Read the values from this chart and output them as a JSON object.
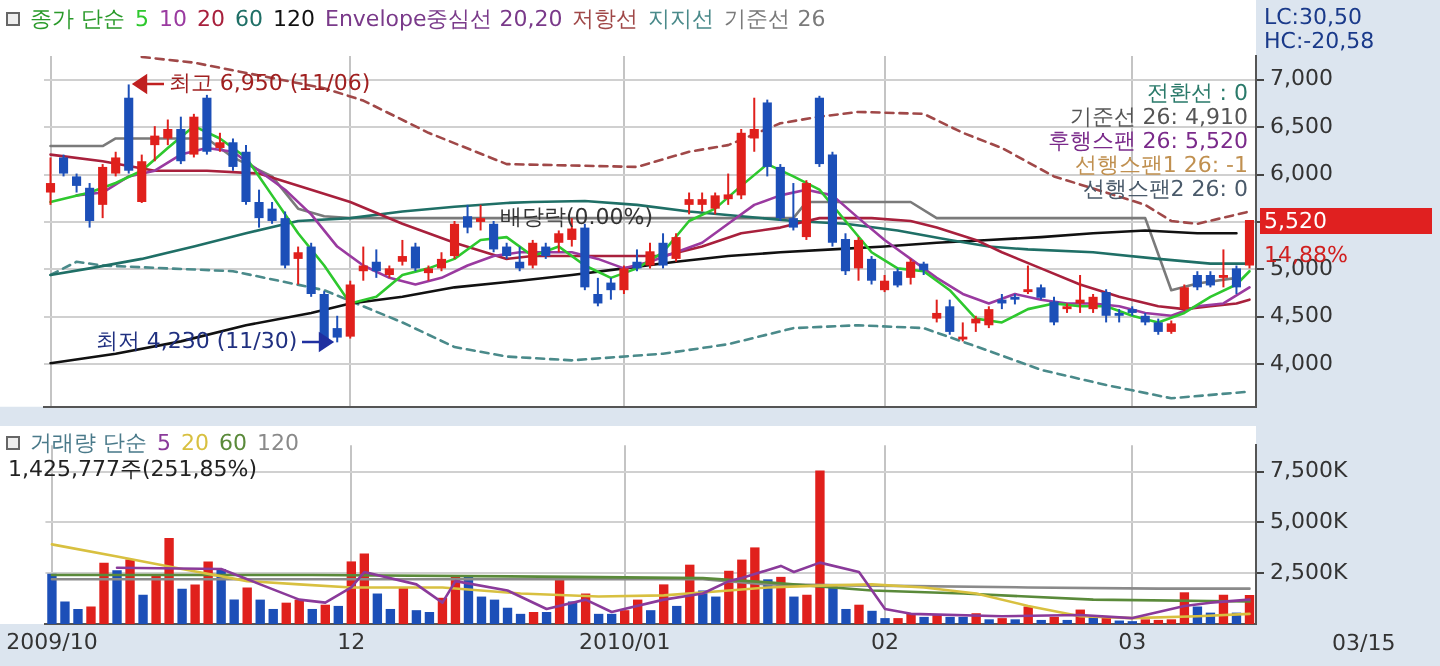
{
  "chart_data": [
    {
      "type": "candlestick",
      "legend_title": "종가 단순",
      "legend": "top left",
      "grid": true,
      "marker": "none",
      "tick_labels": "y",
      "categories": [
        "2009/10",
        null,
        null,
        null,
        null,
        null,
        null,
        null,
        null,
        null,
        null,
        null,
        null,
        null,
        null,
        null,
        null,
        null,
        null,
        null,
        null,
        null,
        null,
        "12",
        null,
        null,
        null,
        null,
        null,
        null,
        null,
        null,
        null,
        null,
        null,
        null,
        null,
        null,
        null,
        null,
        null,
        null,
        null,
        null,
        "2010/01",
        null,
        null,
        null,
        null,
        null,
        null,
        null,
        null,
        null,
        null,
        null,
        null,
        null,
        null,
        null,
        null,
        null,
        null,
        null,
        "02",
        null,
        null,
        null,
        null,
        null,
        null,
        null,
        null,
        null,
        null,
        null,
        null,
        null,
        null,
        null,
        null,
        null,
        null,
        "03",
        null,
        null,
        null,
        null,
        null,
        null,
        null,
        null,
        null
      ],
      "ohlc": [
        [
          5810,
          6180,
          5680,
          5910
        ],
        [
          6180,
          6210,
          5980,
          6010
        ],
        [
          5980,
          6010,
          5810,
          5880
        ],
        [
          5860,
          5910,
          5440,
          5510
        ],
        [
          5680,
          6110,
          5540,
          6080
        ],
        [
          6010,
          6240,
          5980,
          6180
        ],
        [
          6810,
          6950,
          6010,
          6040
        ],
        [
          5710,
          6210,
          5700,
          6140
        ],
        [
          6310,
          6510,
          6140,
          6410
        ],
        [
          6380,
          6580,
          6310,
          6480
        ],
        [
          6480,
          6610,
          6110,
          6140
        ],
        [
          6210,
          6640,
          6180,
          6610
        ],
        [
          6810,
          6840,
          6210,
          6240
        ],
        [
          6280,
          6440,
          6240,
          6340
        ],
        [
          6340,
          6380,
          6040,
          6080
        ],
        [
          6240,
          6310,
          5680,
          5710
        ],
        [
          5710,
          5840,
          5440,
          5540
        ],
        [
          5640,
          5710,
          5480,
          5510
        ],
        [
          5540,
          5610,
          5010,
          5040
        ],
        [
          5110,
          5240,
          4840,
          5180
        ],
        [
          5240,
          5280,
          4710,
          4740
        ],
        [
          4740,
          4770,
          4240,
          4260
        ],
        [
          4380,
          4510,
          4230,
          4280
        ],
        [
          4290,
          4880,
          4270,
          4840
        ],
        [
          4980,
          5240,
          4880,
          5040
        ],
        [
          5080,
          5210,
          4910,
          4980
        ],
        [
          4940,
          5040,
          4910,
          5010
        ],
        [
          5080,
          5310,
          5040,
          5140
        ],
        [
          5240,
          5280,
          4980,
          5010
        ],
        [
          4960,
          5040,
          4880,
          5010
        ],
        [
          5010,
          5180,
          4980,
          5110
        ],
        [
          5140,
          5510,
          5110,
          5480
        ],
        [
          5560,
          5680,
          5380,
          5440
        ],
        [
          5500,
          5680,
          5410,
          5540
        ],
        [
          5480,
          5510,
          5180,
          5210
        ],
        [
          5240,
          5280,
          5110,
          5140
        ],
        [
          5080,
          5240,
          4980,
          5010
        ],
        [
          5040,
          5310,
          5010,
          5280
        ],
        [
          5240,
          5280,
          5110,
          5140
        ],
        [
          5280,
          5410,
          5180,
          5380
        ],
        [
          5310,
          5540,
          5240,
          5430
        ],
        [
          5440,
          5480,
          4780,
          4810
        ],
        [
          4740,
          4910,
          4610,
          4640
        ],
        [
          4860,
          4910,
          4680,
          4780
        ],
        [
          4780,
          5040,
          4740,
          5010
        ],
        [
          5080,
          5210,
          4980,
          5010
        ],
        [
          5040,
          5280,
          5010,
          5190
        ],
        [
          5280,
          5380,
          5010,
          5040
        ],
        [
          5110,
          5380,
          5080,
          5340
        ],
        [
          5680,
          5810,
          5580,
          5740
        ],
        [
          5680,
          5810,
          5610,
          5740
        ],
        [
          5640,
          5810,
          5580,
          5780
        ],
        [
          5740,
          6010,
          5680,
          5790
        ],
        [
          5780,
          6480,
          5740,
          6440
        ],
        [
          6380,
          6810,
          6240,
          6480
        ],
        [
          6760,
          6790,
          5980,
          6080
        ],
        [
          6080,
          6110,
          5510,
          5540
        ],
        [
          5540,
          5910,
          5410,
          5440
        ],
        [
          5340,
          5940,
          5310,
          5910
        ],
        [
          6810,
          6830,
          6080,
          6110
        ],
        [
          6210,
          6240,
          5240,
          5280
        ],
        [
          5320,
          5380,
          4940,
          4980
        ],
        [
          5010,
          5340,
          4880,
          5310
        ],
        [
          5110,
          5140,
          4840,
          4880
        ],
        [
          4780,
          4940,
          4760,
          4880
        ],
        [
          4980,
          5010,
          4810,
          4830
        ],
        [
          4910,
          5110,
          4840,
          5080
        ],
        [
          5060,
          5080,
          4940,
          4990
        ],
        [
          4480,
          4680,
          4440,
          4540
        ],
        [
          4610,
          4680,
          4310,
          4340
        ],
        [
          4260,
          4440,
          4240,
          4290
        ],
        [
          4430,
          4510,
          4340,
          4480
        ],
        [
          4410,
          4610,
          4380,
          4580
        ],
        [
          4680,
          4740,
          4580,
          4640
        ],
        [
          4710,
          4740,
          4630,
          4680
        ],
        [
          4760,
          5040,
          4740,
          4790
        ],
        [
          4810,
          4840,
          4680,
          4700
        ],
        [
          4660,
          4710,
          4410,
          4440
        ],
        [
          4580,
          4640,
          4540,
          4610
        ],
        [
          4640,
          4940,
          4540,
          4680
        ],
        [
          4580,
          4740,
          4540,
          4710
        ],
        [
          4760,
          4790,
          4440,
          4510
        ],
        [
          4540,
          4580,
          4440,
          4510
        ],
        [
          4580,
          4610,
          4510,
          4540
        ],
        [
          4510,
          4540,
          4410,
          4440
        ],
        [
          4440,
          4480,
          4310,
          4340
        ],
        [
          4340,
          4460,
          4320,
          4430
        ],
        [
          4580,
          4840,
          4560,
          4810
        ],
        [
          4940,
          4980,
          4780,
          4810
        ],
        [
          4940,
          4980,
          4810,
          4830
        ],
        [
          4910,
          5210,
          4810,
          4940
        ],
        [
          5010,
          5040,
          4740,
          4810
        ],
        [
          5040,
          5520,
          5010,
          5520
        ]
      ],
      "ylim": [
        3550,
        7250
      ],
      "yticks": [
        {
          "value": 4000,
          "label": "4,000"
        },
        {
          "value": 4500,
          "label": "4,500"
        },
        {
          "value": 5000,
          "label": "5,000"
        },
        {
          "value": 5500,
          "label": null
        },
        {
          "value": 6000,
          "label": "6,000"
        },
        {
          "value": 6500,
          "label": "6,500"
        },
        {
          "value": 7000,
          "label": "7,000"
        }
      ],
      "series": [
        {
          "name": "5",
          "type": "line",
          "color": "#2ec82e",
          "values": [
            5710,
            null,
            null,
            5810,
            null,
            5910,
            null,
            6040,
            null,
            6280,
            null,
            6510,
            null,
            6380,
            null,
            6180,
            null,
            5780,
            null,
            5380,
            null,
            5040,
            null,
            4640,
            null,
            4710,
            null,
            4940,
            null,
            5010,
            null,
            5110,
            null,
            5310,
            null,
            5340,
            null,
            5140,
            null,
            5240,
            null,
            5040,
            null,
            4910,
            null,
            5010,
            null,
            5180,
            null,
            5510,
            null,
            5640,
            null,
            5880,
            null,
            6110,
            null,
            5980,
            null,
            5840,
            null,
            5510,
            null,
            5180,
            null,
            5010,
            null,
            4980,
            null,
            4780,
            null,
            4480,
            null,
            4440,
            null,
            4580,
            null,
            4640,
            null,
            4610,
            null,
            4610,
            null,
            4510,
            null,
            4440,
            null,
            4540,
            null,
            4710,
            null,
            4840,
            4980
          ]
        },
        {
          "name": "10",
          "type": "line",
          "color": "#9a3aa0",
          "values": [
            null,
            null,
            5780,
            null,
            5810,
            null,
            5980,
            null,
            6040,
            null,
            6210,
            null,
            6280,
            null,
            6240,
            null,
            6040,
            null,
            5840,
            null,
            5580,
            null,
            5240,
            null,
            5040,
            null,
            4910,
            null,
            4840,
            null,
            4910,
            null,
            5040,
            null,
            5140,
            null,
            5180,
            null,
            5180,
            null,
            5180,
            null,
            5110,
            null,
            5010,
            null,
            5080,
            null,
            5180,
            null,
            5280,
            null,
            5480,
            null,
            5680,
            null,
            5780,
            null,
            5840,
            null,
            5780,
            null,
            5540,
            null,
            5310,
            null,
            5110,
            null,
            4910,
            null,
            4740,
            null,
            4640,
            null,
            4740,
            null,
            4680,
            null,
            4640,
            null,
            4640,
            null,
            4610,
            null,
            4540,
            null,
            4510,
            null,
            4610,
            null,
            4640,
            null,
            4810
          ]
        },
        {
          "name": "20",
          "type": "line",
          "color": "#a8203c",
          "values": [
            6210,
            null,
            null,
            null,
            6140,
            null,
            null,
            null,
            6040,
            null,
            null,
            null,
            6040,
            null,
            null,
            null,
            6010,
            null,
            null,
            null,
            5840,
            null,
            null,
            5710,
            null,
            null,
            null,
            5480,
            null,
            null,
            null,
            5280,
            null,
            null,
            null,
            5110,
            null,
            5140,
            null,
            null,
            5140,
            null,
            null,
            5140,
            null,
            null,
            null,
            5140,
            null,
            null,
            5240,
            null,
            null,
            5380,
            null,
            null,
            5440,
            null,
            null,
            5540,
            null,
            5540,
            null,
            5540,
            null,
            null,
            5510,
            null,
            5440,
            null,
            null,
            5310,
            null,
            5180,
            null,
            null,
            5010,
            null,
            null,
            4840,
            null,
            null,
            4710,
            null,
            null,
            4610,
            null,
            4580,
            null,
            4610,
            null,
            4640,
            4680
          ]
        },
        {
          "name": "60",
          "type": "line",
          "color": "#1f6f66",
          "values": [
            4940,
            null,
            null,
            5010,
            null,
            null,
            null,
            5110,
            null,
            null,
            null,
            5240,
            null,
            null,
            null,
            5380,
            null,
            null,
            null,
            5510,
            null,
            null,
            null,
            5540,
            null,
            null,
            null,
            5610,
            null,
            null,
            null,
            5660,
            null,
            null,
            null,
            5700,
            null,
            5710,
            null,
            null,
            null,
            5720,
            null,
            null,
            null,
            5680,
            null,
            null,
            null,
            5610,
            null,
            null,
            null,
            5560,
            null,
            null,
            null,
            5510,
            null,
            null,
            null,
            5480,
            null,
            null,
            null,
            5410,
            null,
            null,
            null,
            5310,
            null,
            null,
            5240,
            null,
            null,
            5210,
            null,
            null,
            null,
            null,
            5180,
            null,
            null,
            null,
            null,
            5110,
            null,
            null,
            null,
            5060,
            null,
            null,
            5060
          ]
        },
        {
          "name": "120",
          "type": "line",
          "color": "#111111",
          "values": [
            4010,
            null,
            null,
            null,
            null,
            4110,
            null,
            null,
            null,
            null,
            4240,
            null,
            null,
            null,
            null,
            4410,
            null,
            null,
            null,
            null,
            4540,
            null,
            null,
            4640,
            null,
            null,
            null,
            4710,
            null,
            null,
            null,
            4810,
            null,
            null,
            null,
            null,
            4880,
            null,
            null,
            null,
            4940,
            null,
            null,
            null,
            5010,
            null,
            null,
            null,
            5080,
            null,
            null,
            null,
            5140,
            null,
            null,
            null,
            5180,
            null,
            null,
            null,
            5210,
            null,
            null,
            null,
            5240,
            null,
            null,
            null,
            5280,
            null,
            null,
            null,
            5310,
            null,
            null,
            null,
            5340,
            null,
            null,
            null,
            5380,
            null,
            null,
            null,
            5410,
            null,
            null,
            null,
            5380,
            null,
            null,
            5380,
            null
          ]
        },
        {
          "name": "저항선",
          "type": "line",
          "color": "#a04848",
          "line_style": "dashed",
          "values": [
            null,
            null,
            null,
            null,
            null,
            null,
            null,
            7240,
            null,
            null,
            null,
            7180,
            null,
            null,
            null,
            null,
            null,
            null,
            null,
            null,
            null,
            6910,
            null,
            null,
            6780,
            null,
            null,
            null,
            null,
            6440,
            null,
            null,
            null,
            null,
            null,
            6110,
            null,
            null,
            null,
            null,
            null,
            null,
            null,
            null,
            null,
            6080,
            null,
            null,
            null,
            6240,
            null,
            null,
            6310,
            null,
            null,
            null,
            6540,
            null,
            null,
            6610,
            null,
            null,
            6660,
            null,
            null,
            null,
            null,
            6640,
            null,
            null,
            6440,
            null,
            null,
            6280,
            null,
            null,
            null,
            5980,
            null,
            null,
            null,
            5810,
            null,
            null,
            5680,
            null,
            5510,
            null,
            5480,
            null,
            null,
            null,
            5610
          ]
        },
        {
          "name": "지지선",
          "type": "line",
          "color": "#4a8a8a",
          "line_style": "dashed",
          "values": [
            4940,
            null,
            5080,
            null,
            5040,
            null,
            null,
            null,
            null,
            null,
            null,
            null,
            null,
            null,
            4980,
            null,
            null,
            null,
            null,
            null,
            null,
            4780,
            null,
            null,
            4610,
            null,
            null,
            4440,
            null,
            null,
            null,
            4180,
            null,
            null,
            null,
            4080,
            null,
            null,
            null,
            null,
            4040,
            null,
            null,
            null,
            null,
            null,
            null,
            4110,
            null,
            null,
            null,
            null,
            4210,
            null,
            null,
            null,
            null,
            4380,
            null,
            null,
            null,
            null,
            4410,
            null,
            null,
            null,
            null,
            4380,
            null,
            null,
            null,
            null,
            4140,
            null,
            null,
            null,
            3940,
            null,
            null,
            null,
            null,
            3780,
            null,
            null,
            null,
            null,
            3640,
            null,
            null,
            null,
            null,
            null,
            3710
          ]
        },
        {
          "name": "기준선 26",
          "type": "line",
          "color": "#7a7a7a",
          "values": [
            6300,
            null,
            null,
            null,
            6300,
            6380,
            null,
            null,
            null,
            null,
            null,
            null,
            6380,
            null,
            6180,
            null,
            null,
            5980,
            null,
            5640,
            null,
            5560,
            null,
            5540,
            null,
            null,
            null,
            null,
            null,
            null,
            null,
            null,
            null,
            null,
            null,
            null,
            5540,
            null,
            null,
            null,
            null,
            null,
            null,
            null,
            null,
            null,
            null,
            null,
            null,
            null,
            5540,
            null,
            null,
            null,
            null,
            null,
            null,
            5540,
            5710,
            null,
            null,
            null,
            null,
            null,
            null,
            null,
            5710,
            null,
            5540,
            null,
            null,
            null,
            null,
            null,
            null,
            null,
            null,
            null,
            null,
            null,
            null,
            null,
            null,
            null,
            5540,
            null,
            4780,
            null,
            4850,
            null,
            null,
            4910,
            null
          ]
        }
      ],
      "annotations": [
        "Envelope중심선 20,20",
        {
          "text": "최고 6,950 (11/06)",
          "y": 6950
        },
        {
          "text": "최저 4,230 (11/30)",
          "y": 4230
        },
        "배당락(0.00%)",
        "전환선 : 0",
        "기준선 26: 4,910",
        "후행스팬 26: 5,520",
        "선행스팬1 26: -1",
        "선행스팬2 26: 0",
        "5,520",
        "14,88%",
        "LC:30,50",
        "HC:-20,58"
      ]
    },
    {
      "type": "bar",
      "legend_title": "거래량 단순",
      "legend": "top left",
      "grid": true,
      "marker": "none",
      "categories": [
        "2009/10",
        null,
        null,
        null,
        null,
        null,
        null,
        null,
        null,
        null,
        null,
        null,
        null,
        null,
        null,
        null,
        null,
        null,
        null,
        null,
        null,
        null,
        null,
        "12",
        null,
        null,
        null,
        null,
        null,
        null,
        null,
        null,
        null,
        null,
        null,
        null,
        null,
        null,
        null,
        null,
        null,
        null,
        null,
        null,
        "2010/01",
        null,
        null,
        null,
        null,
        null,
        null,
        null,
        null,
        null,
        null,
        null,
        null,
        null,
        null,
        null,
        null,
        null,
        null,
        null,
        "02",
        null,
        null,
        null,
        null,
        null,
        null,
        null,
        null,
        null,
        null,
        null,
        null,
        null,
        null,
        null,
        null,
        null,
        null,
        "03",
        null,
        null,
        null,
        null,
        null,
        null,
        null,
        null,
        null
      ],
      "values": [
        2470,
        1110,
        740,
        860,
        3020,
        2650,
        3170,
        1440,
        2440,
        4230,
        1740,
        1950,
        3080,
        2710,
        1200,
        1800,
        1200,
        740,
        1050,
        1200,
        740,
        950,
        890,
        3080,
        3470,
        1500,
        740,
        1800,
        680,
        590,
        1290,
        2410,
        2320,
        1350,
        1200,
        800,
        500,
        590,
        590,
        2170,
        1110,
        1500,
        500,
        500,
        680,
        1200,
        680,
        1950,
        890,
        2920,
        1650,
        1350,
        2620,
        3170,
        3770,
        2200,
        2320,
        1350,
        1440,
        7560,
        1950,
        740,
        950,
        650,
        290,
        290,
        500,
        350,
        440,
        350,
        350,
        530,
        230,
        290,
        230,
        860,
        200,
        350,
        200,
        710,
        350,
        350,
        170,
        140,
        230,
        200,
        230,
        1560,
        860,
        560,
        1440,
        560,
        1426
      ],
      "colors": [
        "#1c4fb8",
        "#1c4fb8",
        "#1c4fb8",
        "#e0201c",
        "#e0201c",
        "#1c4fb8",
        "#e0201c",
        "#1c4fb8",
        "#e0201c",
        "#e0201c",
        "#1c4fb8",
        "#e0201c",
        "#e0201c",
        "#1c4fb8",
        "#1c4fb8",
        "#e0201c",
        "#1c4fb8",
        "#1c4fb8",
        "#e0201c",
        "#e0201c",
        "#1c4fb8",
        "#e0201c",
        "#1c4fb8",
        "#e0201c",
        "#e0201c",
        "#1c4fb8",
        "#1c4fb8",
        "#e0201c",
        "#1c4fb8",
        "#1c4fb8",
        "#e0201c",
        "#e0201c",
        "#1c4fb8",
        "#1c4fb8",
        "#1c4fb8",
        "#1c4fb8",
        "#1c4fb8",
        "#e0201c",
        "#1c4fb8",
        "#e0201c",
        "#1c4fb8",
        "#e0201c",
        "#1c4fb8",
        "#1c4fb8",
        "#e0201c",
        "#e0201c",
        "#1c4fb8",
        "#e0201c",
        "#1c4fb8",
        "#e0201c",
        "#1c4fb8",
        "#1c4fb8",
        "#e0201c",
        "#e0201c",
        "#e0201c",
        "#1c4fb8",
        "#e0201c",
        "#1c4fb8",
        "#e0201c",
        "#e0201c",
        "#1c4fb8",
        "#1c4fb8",
        "#e0201c",
        "#1c4fb8",
        "#1c4fb8",
        "#e0201c",
        "#e0201c",
        "#1c4fb8",
        "#e0201c",
        "#1c4fb8",
        "#1c4fb8",
        "#e0201c",
        "#1c4fb8",
        "#e0201c",
        "#1c4fb8",
        "#e0201c",
        "#1c4fb8",
        "#e0201c",
        "#1c4fb8",
        "#e0201c",
        "#1c4fb8",
        "#e0201c",
        "#1c4fb8",
        "#1c4fb8",
        "#e0201c",
        "#e0201c",
        "#e0201c",
        "#e0201c",
        "#1c4fb8",
        "#1c4fb8",
        "#e0201c",
        "#1c4fb8",
        "#e0201c"
      ],
      "ylim": [
        0,
        8800
      ],
      "yticks": [
        {
          "value": 2500,
          "label": "2,500K"
        },
        {
          "value": 5000,
          "label": "5,000K"
        },
        {
          "value": 7500,
          "label": "7,500K"
        }
      ],
      "series": [
        {
          "name": "5",
          "type": "line",
          "color": "#8a3a9a",
          "values": [
            null,
            null,
            null,
            null,
            null,
            2770,
            null,
            null,
            null,
            null,
            null,
            null,
            null,
            2710,
            null,
            null,
            1950,
            null,
            null,
            1200,
            null,
            1050,
            null,
            1800,
            2560,
            null,
            null,
            null,
            1950,
            null,
            1050,
            2110,
            null,
            null,
            null,
            1650,
            null,
            null,
            740,
            null,
            null,
            1200,
            null,
            590,
            null,
            null,
            null,
            1200,
            null,
            null,
            1500,
            null,
            2110,
            2260,
            null,
            null,
            2860,
            2560,
            null,
            3020,
            null,
            null,
            2560,
            1650,
            740,
            null,
            500,
            null,
            null,
            null,
            null,
            null,
            null,
            380,
            null,
            null,
            null,
            null,
            null,
            440,
            null,
            null,
            null,
            290,
            null,
            null,
            null,
            890,
            null,
            1050,
            null,
            null,
            1200
          ]
        },
        {
          "name": "20",
          "type": "line",
          "color": "#d8c040",
          "values": [
            3920,
            null,
            null,
            null,
            null,
            3320,
            null,
            null,
            null,
            null,
            2710,
            null,
            null,
            null,
            null,
            2110,
            null,
            null,
            null,
            1950,
            null,
            null,
            null,
            1800,
            null,
            null,
            null,
            null,
            null,
            null,
            1800,
            null,
            null,
            null,
            null,
            null,
            1500,
            null,
            null,
            null,
            null,
            null,
            1350,
            null,
            null,
            null,
            null,
            1410,
            null,
            null,
            null,
            null,
            1650,
            null,
            null,
            1800,
            null,
            null,
            null,
            1890,
            null,
            null,
            null,
            1950,
            null,
            null,
            null,
            1800,
            null,
            null,
            null,
            1500,
            null,
            null,
            null,
            890,
            null,
            null,
            null,
            380,
            null,
            null,
            null,
            290,
            null,
            null,
            null,
            null,
            380,
            null,
            null,
            null,
            500
          ]
        },
        {
          "name": "60",
          "type": "line",
          "color": "#5a8a3a",
          "values": [
            2410,
            null,
            null,
            null,
            null,
            null,
            null,
            null,
            null,
            null,
            null,
            null,
            null,
            null,
            null,
            null,
            null,
            null,
            null,
            null,
            2410,
            null,
            null,
            null,
            null,
            null,
            null,
            null,
            null,
            null,
            null,
            null,
            null,
            null,
            null,
            null,
            null,
            null,
            null,
            null,
            2320,
            null,
            null,
            null,
            null,
            null,
            null,
            null,
            null,
            null,
            2260,
            null,
            null,
            null,
            null,
            2050,
            null,
            null,
            null,
            null,
            null,
            null,
            null,
            1650,
            null,
            null,
            null,
            null,
            null,
            null,
            1500,
            null,
            null,
            null,
            null,
            null,
            null,
            null,
            null,
            null,
            1200,
            null,
            null,
            null,
            null,
            null,
            null,
            null,
            null,
            null,
            null,
            null,
            1110
          ]
        },
        {
          "name": "120",
          "type": "line",
          "color": "#8a8a8a",
          "values": [
            2200,
            null,
            null,
            null,
            null,
            null,
            null,
            null,
            null,
            null,
            null,
            null,
            null,
            null,
            null,
            null,
            null,
            null,
            null,
            null,
            null,
            null,
            null,
            null,
            null,
            2200,
            null,
            null,
            null,
            null,
            null,
            null,
            null,
            null,
            null,
            null,
            null,
            null,
            null,
            null,
            null,
            null,
            null,
            null,
            null,
            null,
            null,
            null,
            null,
            null,
            2200,
            null,
            null,
            null,
            null,
            1950,
            null,
            null,
            null,
            null,
            null,
            null,
            null,
            1890,
            null,
            null,
            null,
            null,
            null,
            null,
            null,
            null,
            null,
            null,
            null,
            1800,
            null,
            null,
            null,
            null,
            null,
            null,
            null,
            null,
            null,
            1740,
            null,
            null,
            null,
            null,
            null,
            null,
            1740
          ]
        }
      ],
      "annotations": [
        "1,425,777주(251,85%)",
        "03/15"
      ]
    }
  ]
}
